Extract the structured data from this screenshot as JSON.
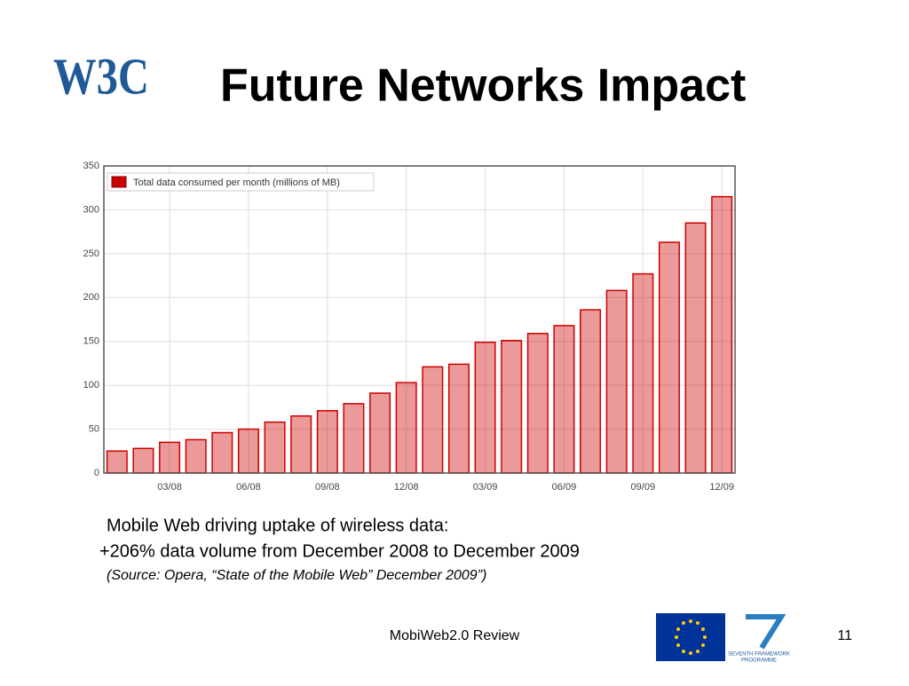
{
  "logo": "W3C",
  "title": "Future Networks Impact",
  "chart_data": {
    "type": "bar",
    "legend": "Total data consumed per month (millions of MB)",
    "legend_position": "upper left",
    "categories": [
      null,
      null,
      "03/08",
      null,
      null,
      "06/08",
      null,
      null,
      "09/08",
      null,
      null,
      "12/08",
      null,
      null,
      "03/09",
      null,
      null,
      "06/09",
      null,
      null,
      "09/09",
      null,
      null,
      "12/09"
    ],
    "values": [
      25,
      28,
      35,
      38,
      46,
      50,
      58,
      65,
      71,
      79,
      91,
      103,
      121,
      124,
      149,
      151,
      159,
      168,
      186,
      208,
      227,
      263,
      285,
      315
    ],
    "color": "#cc0000",
    "ylim": [
      0,
      350
    ],
    "yticks": [
      0,
      50,
      100,
      150,
      200,
      250,
      300,
      350
    ],
    "grid": true
  },
  "caption": [
    "Mobile Web driving uptake of wireless data:",
    "+206% data volume from December 2008 to December 2009"
  ],
  "source": "(Source: Opera, “State of the Mobile Web” December 2009”)",
  "footer": {
    "center": "MobiWeb2.0 Review",
    "page": "11",
    "fp7": [
      "SEVENTH FRAMEWORK",
      "PROGRAMME"
    ]
  }
}
